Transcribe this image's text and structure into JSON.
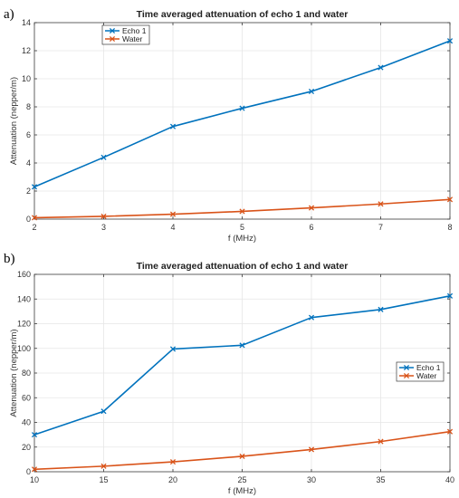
{
  "colors": {
    "echo": "#0072BD",
    "water": "#D95319"
  },
  "chart_data": [
    {
      "type": "line",
      "panel_label": "a)",
      "title": "Time averaged attenuation of echo 1 and water",
      "xlabel": "f (MHz)",
      "ylabel": "Attenuation (nepper/m)",
      "xlim": [
        2,
        8
      ],
      "ylim": [
        0,
        14
      ],
      "xticks": [
        2,
        3,
        4,
        5,
        6,
        7,
        8
      ],
      "yticks": [
        0,
        2,
        4,
        6,
        8,
        10,
        12,
        14
      ],
      "grid": true,
      "legend_position": "top-left",
      "marker": "x",
      "series": [
        {
          "name": "Echo 1",
          "color": "#0072BD",
          "x": [
            2,
            3,
            4,
            5,
            6,
            7,
            8
          ],
          "y": [
            2.3,
            4.4,
            6.6,
            7.9,
            9.1,
            10.8,
            12.7
          ]
        },
        {
          "name": "Water",
          "color": "#D95319",
          "x": [
            2,
            3,
            4,
            5,
            6,
            7,
            8
          ],
          "y": [
            0.1,
            0.2,
            0.35,
            0.55,
            0.8,
            1.08,
            1.4
          ]
        }
      ]
    },
    {
      "type": "line",
      "panel_label": "b)",
      "title": "Time averaged attenuation of echo 1 and water",
      "xlabel": "f (MHz)",
      "ylabel": "Attenuation (nepper/m)",
      "xlim": [
        10,
        40
      ],
      "ylim": [
        0,
        160
      ],
      "xticks": [
        10,
        15,
        20,
        25,
        30,
        35,
        40
      ],
      "yticks": [
        0,
        20,
        40,
        60,
        80,
        100,
        120,
        140,
        160
      ],
      "grid": true,
      "legend_position": "right",
      "marker": "x",
      "series": [
        {
          "name": "Echo 1",
          "color": "#0072BD",
          "x": [
            10,
            15,
            20,
            25,
            30,
            35,
            40
          ],
          "y": [
            30,
            49,
            99.5,
            102.5,
            125,
            131.5,
            142.5
          ]
        },
        {
          "name": "Water",
          "color": "#D95319",
          "x": [
            10,
            15,
            20,
            25,
            30,
            35,
            40
          ],
          "y": [
            2,
            4.5,
            8,
            12.5,
            18,
            24.5,
            32.5
          ]
        }
      ]
    }
  ]
}
